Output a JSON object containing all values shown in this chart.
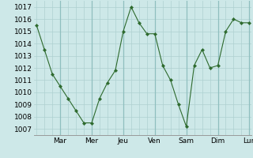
{
  "x_values": [
    0,
    1,
    2,
    3,
    4,
    5,
    6,
    7,
    8,
    9,
    10,
    11,
    12,
    13,
    14,
    15,
    16,
    17,
    18,
    19,
    20,
    21,
    22,
    23,
    24,
    25,
    26,
    27
  ],
  "y_values": [
    1015.5,
    1013.5,
    1011.5,
    1010.5,
    1009.5,
    1008.5,
    1007.5,
    1007.5,
    1009.5,
    1010.8,
    1011.8,
    1015.0,
    1017.0,
    1015.7,
    1014.8,
    1014.8,
    1012.2,
    1011.0,
    1009.0,
    1007.2,
    1012.2,
    1013.5,
    1012.0,
    1012.2,
    1015.0,
    1016.0,
    1015.7,
    1015.7
  ],
  "x_tick_positions": [
    3,
    7,
    11,
    15,
    19,
    23,
    27
  ],
  "x_tick_labels": [
    "Mar",
    "Mer",
    "Jeu",
    "Ven",
    "Sam",
    "Dim",
    "Lun"
  ],
  "x_minor_positions": [
    0,
    1,
    2,
    3,
    4,
    5,
    6,
    7,
    8,
    9,
    10,
    11,
    12,
    13,
    14,
    15,
    16,
    17,
    18,
    19,
    20,
    21,
    22,
    23,
    24,
    25,
    26,
    27
  ],
  "ylim": [
    1006.5,
    1017.5
  ],
  "yticks": [
    1007,
    1008,
    1009,
    1010,
    1011,
    1012,
    1013,
    1014,
    1015,
    1016,
    1017
  ],
  "line_color": "#2d6a2d",
  "marker_color": "#2d6a2d",
  "bg_color": "#cde8e8",
  "grid_color": "#aed0d0",
  "grid_major_color": "#8fbfbf"
}
